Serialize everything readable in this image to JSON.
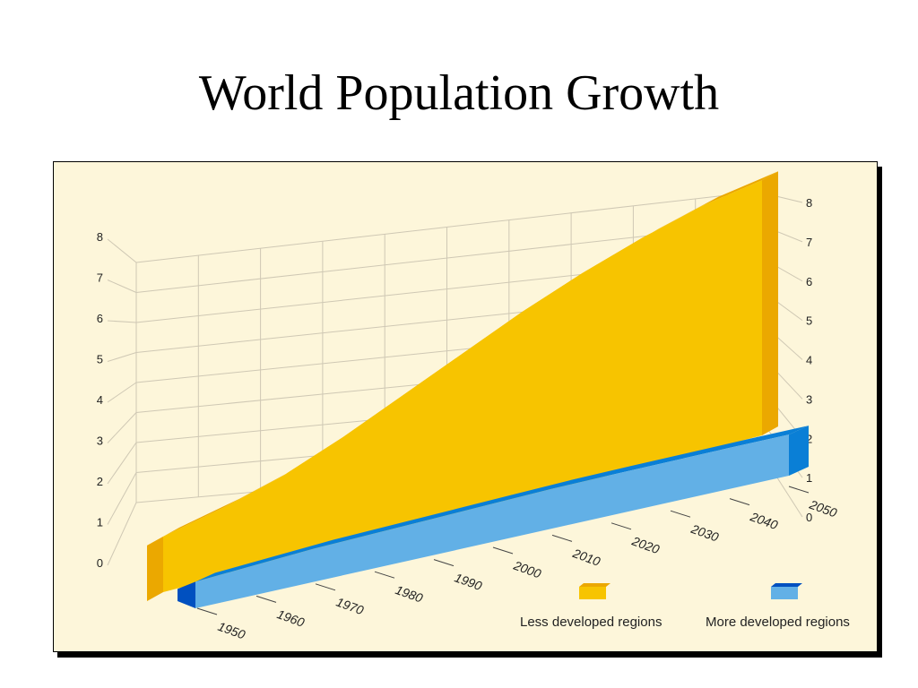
{
  "title": "World Population Growth",
  "colors": {
    "panel": "#fdf6da",
    "grid": "#cfc8b4",
    "less_front": "#f7c400",
    "less_top": "#eba800",
    "more_front": "#62b0e6",
    "more_top": "#0a7fd6",
    "more_edge": "#0050c0"
  },
  "chart_data": {
    "type": "area",
    "title": "World Population Growth",
    "x": [
      "1950",
      "1960",
      "1970",
      "1980",
      "1990",
      "2000",
      "2010",
      "2020",
      "2030",
      "2040",
      "2050"
    ],
    "y_ticks": [
      "0",
      "1",
      "2",
      "3",
      "4",
      "5",
      "6",
      "7",
      "8"
    ],
    "ylim": [
      0,
      8
    ],
    "grid": true,
    "legend_position": "bottom-right",
    "series": [
      {
        "name": "Less developed regions",
        "values": [
          1.7,
          2.1,
          2.6,
          3.3,
          4.1,
          4.9,
          5.7,
          6.4,
          7.0,
          7.5,
          7.8
        ]
      },
      {
        "name": "More developed regions",
        "values": [
          0.8,
          0.9,
          1.0,
          1.05,
          1.1,
          1.15,
          1.2,
          1.22,
          1.23,
          1.24,
          1.24
        ]
      }
    ]
  }
}
